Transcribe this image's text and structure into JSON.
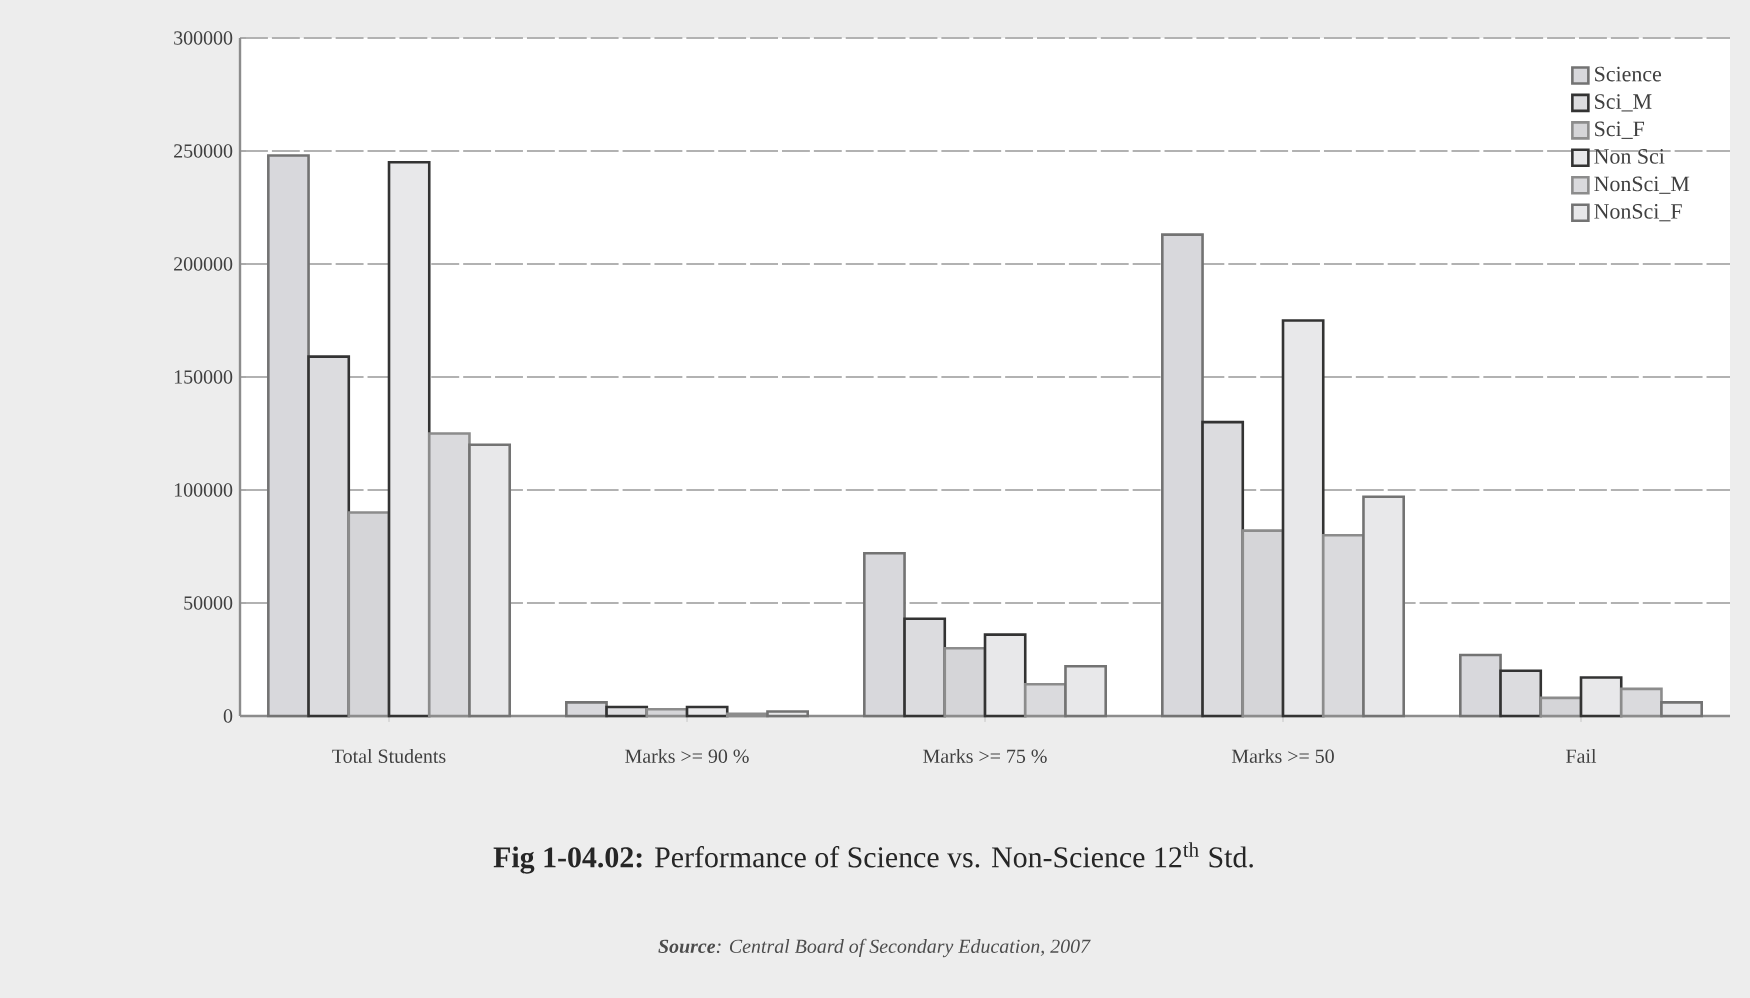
{
  "chart_data": {
    "type": "bar",
    "title": "**Fig 1-04.02:** Performance of Science vs. Non-Science 12$^{th}$ Std.",
    "annotations": [
      "**Source**: Central Board of Secondary Education, 2007"
    ],
    "categories": [
      "Total Students",
      "Marks >= 90 %",
      "Marks >= 75 %",
      "Marks >= 50",
      "Fail"
    ],
    "series": [
      {
        "name": "Science",
        "color": "#d8d8dc",
        "values": [
          248000,
          6000,
          72000,
          213000,
          27000
        ]
      },
      {
        "name": "Sci_M",
        "color": "#dcdcdf",
        "values": [
          159000,
          4000,
          43000,
          130000,
          20000
        ]
      },
      {
        "name": "Sci_F",
        "color": "#d5d5d8",
        "values": [
          90000,
          3000,
          30000,
          82000,
          8000
        ]
      },
      {
        "name": "Non Sci",
        "color": "#e8e8ea",
        "values": [
          245000,
          4000,
          36000,
          175000,
          17000
        ]
      },
      {
        "name": "NonSci_M",
        "color": "#dadadd",
        "values": [
          125000,
          1000,
          14000,
          80000,
          12000
        ]
      },
      {
        "name": "NonSci_F",
        "color": "#e8e8ea",
        "values": [
          120000,
          2000,
          22000,
          97000,
          6000
        ]
      }
    ],
    "ylim": [
      0,
      300000
    ],
    "yticks": [
      0,
      50000,
      100000,
      150000,
      200000,
      250000,
      300000
    ],
    "grid": "y",
    "legend": "top right"
  }
}
